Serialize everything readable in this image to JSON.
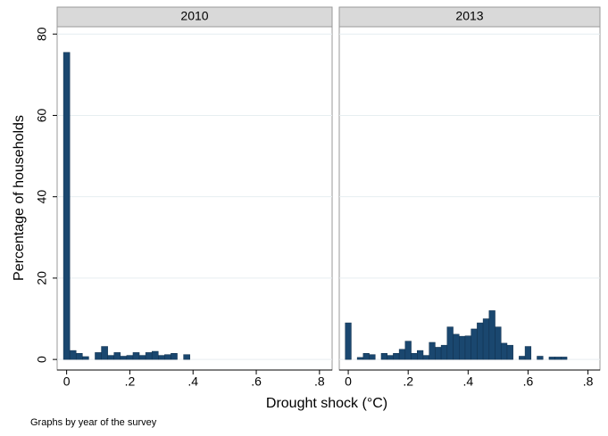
{
  "chart_data": [
    {
      "type": "histogram",
      "title": "2010",
      "color": "#1a476f",
      "bins": [
        -0.01,
        0.01,
        0.03,
        0.05,
        0.07,
        0.09,
        0.11,
        0.13,
        0.15,
        0.17,
        0.19,
        0.21,
        0.23,
        0.25,
        0.27,
        0.29,
        0.31,
        0.33,
        0.35,
        0.37,
        0.39
      ],
      "values": [
        75.5,
        2.2,
        1.5,
        0.7,
        0,
        1.7,
        3.2,
        1.0,
        1.7,
        0.8,
        1.0,
        1.7,
        1.0,
        1.7,
        2.0,
        1.0,
        1.2,
        1.5,
        0,
        1.2
      ],
      "xlim": [
        -0.03,
        0.84
      ],
      "ylim": [
        -2.6,
        81.8
      ],
      "xticks": [
        0,
        {
          "value": 0.2,
          "label": ".2"
        },
        {
          "value": 0.4,
          "label": ".4"
        },
        {
          "value": 0.6,
          "label": ".6"
        },
        {
          "value": 0.8,
          "label": ".8"
        }
      ],
      "yticks": [
        0,
        20,
        40,
        60,
        80
      ],
      "grid": true
    },
    {
      "type": "histogram",
      "title": "2013",
      "color": "#1a476f",
      "bins": [
        -0.01,
        0.01,
        0.03,
        0.05,
        0.07,
        0.09,
        0.11,
        0.13,
        0.15,
        0.17,
        0.19,
        0.21,
        0.23,
        0.25,
        0.27,
        0.29,
        0.31,
        0.33,
        0.35,
        0.37,
        0.39,
        0.41,
        0.43,
        0.45,
        0.47,
        0.49,
        0.51,
        0.53,
        0.55,
        0.57,
        0.59,
        0.61,
        0.63,
        0.65,
        0.67,
        0.69,
        0.71,
        0.73,
        0.75
      ],
      "values": [
        9,
        0,
        0.5,
        1.5,
        1.2,
        0,
        1.5,
        1,
        1.5,
        2.5,
        4.5,
        1.5,
        2.2,
        1,
        4.2,
        3,
        3.5,
        8,
        6.2,
        5.7,
        5.8,
        7.5,
        9,
        10,
        12,
        8,
        4,
        3.5,
        0,
        0.8,
        3.2,
        0,
        0.8,
        0,
        0.6,
        0.6,
        0.6,
        0
      ],
      "xlim": [
        -0.03,
        0.84
      ],
      "ylim": [
        -2.6,
        81.8
      ],
      "xticks": [
        0,
        {
          "value": 0.2,
          "label": ".2"
        },
        {
          "value": 0.4,
          "label": ".4"
        },
        {
          "value": 0.6,
          "label": ".6"
        },
        {
          "value": 0.8,
          "label": ".8"
        }
      ],
      "yticks": [
        0,
        20,
        40,
        60,
        80
      ],
      "grid": true
    }
  ],
  "y_label": "Percentage of households",
  "x_label": "Drought shock (°C)",
  "note": "Graphs by year of the survey"
}
